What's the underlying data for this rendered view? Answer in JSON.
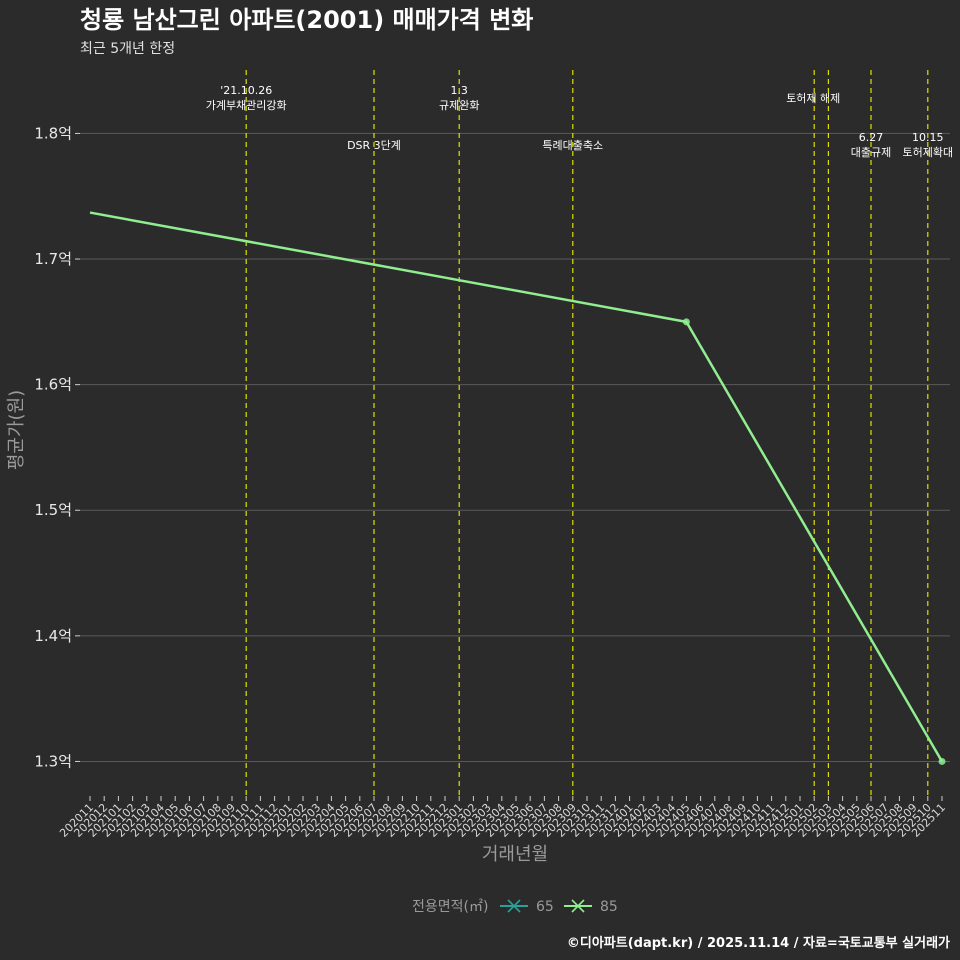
{
  "chart_data": {
    "type": "line",
    "title": "청룡 남산그린 아파트(2001) 매매가격 변화",
    "subtitle": "최근 5개년 한정",
    "xlabel": "거래년월",
    "ylabel": "평균가(원)",
    "caption": "©디아파트(dapt.kr) / 2025.11.14 / 자료=국토교통부 실거래가",
    "categories": [
      "202011",
      "202012",
      "202101",
      "202102",
      "202103",
      "202104",
      "202105",
      "202106",
      "202107",
      "202108",
      "202109",
      "202110",
      "202111",
      "202112",
      "202201",
      "202202",
      "202203",
      "202204",
      "202205",
      "202206",
      "202207",
      "202208",
      "202209",
      "202210",
      "202211",
      "202212",
      "202301",
      "202302",
      "202303",
      "202304",
      "202305",
      "202306",
      "202307",
      "202308",
      "202309",
      "202310",
      "202311",
      "202312",
      "202401",
      "202402",
      "202403",
      "202404",
      "202405",
      "202406",
      "202407",
      "202408",
      "202409",
      "202410",
      "202411",
      "202412",
      "202501",
      "202502",
      "202503",
      "202504",
      "202505",
      "202506",
      "202507",
      "202508",
      "202509",
      "202510",
      "202511"
    ],
    "yticks": [
      1.3,
      1.4,
      1.5,
      1.6,
      1.7,
      1.8
    ],
    "ytick_labels": [
      "1.3억",
      "1.4억",
      "1.5억",
      "1.6억",
      "1.7억",
      "1.8억"
    ],
    "ylim": [
      1.2725,
      1.8505
    ],
    "series": [
      {
        "name": "65",
        "color": "#2aa198",
        "points": []
      },
      {
        "name": "85",
        "color": "#90ee90",
        "points": [
          {
            "x": "202011",
            "y": 1.737,
            "marker": false
          },
          {
            "x": "202405",
            "y": 1.65,
            "marker": true
          },
          {
            "x": "202511",
            "y": 1.3,
            "marker": true
          }
        ]
      }
    ],
    "events": [
      {
        "x": "202110",
        "lines": [
          "'21.10.26",
          "가계부채관리강화"
        ],
        "row": 0
      },
      {
        "x": "202207",
        "lines": [
          "DSR 3단계"
        ],
        "row": 1
      },
      {
        "x": "202301",
        "lines": [
          "1.3",
          "규제완화"
        ],
        "row": 0
      },
      {
        "x": "202309",
        "lines": [
          "특례대출축소"
        ],
        "row": 1
      },
      {
        "x": "202502",
        "lines": [
          "토허제 해제"
        ],
        "row": 0,
        "anchor": "start"
      },
      {
        "x": "202503",
        "lines": [],
        "row": 0
      },
      {
        "x": "202506",
        "lines": [
          "6.27",
          "대출규제"
        ],
        "row": 1
      },
      {
        "x": "202510",
        "lines": [
          "10.15",
          "토허제확대"
        ],
        "row": 1
      }
    ],
    "legend": {
      "title": "전용면적(㎡)",
      "entries": [
        "65",
        "85"
      ]
    },
    "grid": true
  }
}
